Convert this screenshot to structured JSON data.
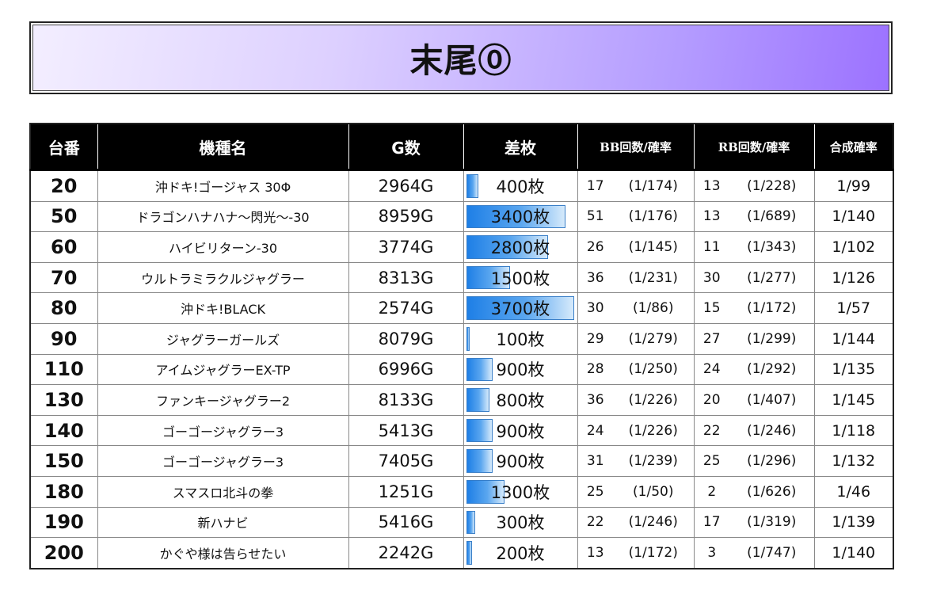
{
  "title": "末尾⓪",
  "headers": {
    "no": "台番",
    "name": "機種名",
    "games": "G数",
    "diff": "差枚",
    "bb": "BB回数/確率",
    "rb": "RB回数/確率",
    "combined": "合成確率"
  },
  "diff_scale_max": 3700,
  "rows": [
    {
      "no": "20",
      "name": "沖ドキ!ゴージャス 30Φ",
      "games": "2964G",
      "diff": "400枚",
      "diff_value": 400,
      "bb": "17",
      "bb_prob": "(1/174)",
      "rb": "13",
      "rb_prob": "(1/228)",
      "combined": "1/99"
    },
    {
      "no": "50",
      "name": "ドラゴンハナハナ～閃光～-30",
      "games": "8959G",
      "diff": "3400枚",
      "diff_value": 3400,
      "bb": "51",
      "bb_prob": "(1/176)",
      "rb": "13",
      "rb_prob": "(1/689)",
      "combined": "1/140"
    },
    {
      "no": "60",
      "name": "ハイビリターン-30",
      "games": "3774G",
      "diff": "2800枚",
      "diff_value": 2800,
      "bb": "26",
      "bb_prob": "(1/145)",
      "rb": "11",
      "rb_prob": "(1/343)",
      "combined": "1/102"
    },
    {
      "no": "70",
      "name": "ウルトラミラクルジャグラー",
      "games": "8313G",
      "diff": "1500枚",
      "diff_value": 1500,
      "bb": "36",
      "bb_prob": "(1/231)",
      "rb": "30",
      "rb_prob": "(1/277)",
      "combined": "1/126"
    },
    {
      "no": "80",
      "name": "沖ドキ!BLACK",
      "games": "2574G",
      "diff": "3700枚",
      "diff_value": 3700,
      "bb": "30",
      "bb_prob": "(1/86)",
      "rb": "15",
      "rb_prob": "(1/172)",
      "combined": "1/57"
    },
    {
      "no": "90",
      "name": "ジャグラーガールズ",
      "games": "8079G",
      "diff": "100枚",
      "diff_value": 100,
      "bb": "29",
      "bb_prob": "(1/279)",
      "rb": "27",
      "rb_prob": "(1/299)",
      "combined": "1/144"
    },
    {
      "no": "110",
      "name": "アイムジャグラーEX-TP",
      "games": "6996G",
      "diff": "900枚",
      "diff_value": 900,
      "bb": "28",
      "bb_prob": "(1/250)",
      "rb": "24",
      "rb_prob": "(1/292)",
      "combined": "1/135"
    },
    {
      "no": "130",
      "name": "ファンキージャグラー2",
      "games": "8133G",
      "diff": "800枚",
      "diff_value": 800,
      "bb": "36",
      "bb_prob": "(1/226)",
      "rb": "20",
      "rb_prob": "(1/407)",
      "combined": "1/145"
    },
    {
      "no": "140",
      "name": "ゴーゴージャグラー3",
      "games": "5413G",
      "diff": "900枚",
      "diff_value": 900,
      "bb": "24",
      "bb_prob": "(1/226)",
      "rb": "22",
      "rb_prob": "(1/246)",
      "combined": "1/118"
    },
    {
      "no": "150",
      "name": "ゴーゴージャグラー3",
      "games": "7405G",
      "diff": "900枚",
      "diff_value": 900,
      "bb": "31",
      "bb_prob": "(1/239)",
      "rb": "25",
      "rb_prob": "(1/296)",
      "combined": "1/132"
    },
    {
      "no": "180",
      "name": "スマスロ北斗の拳",
      "games": "1251G",
      "diff": "1300枚",
      "diff_value": 1300,
      "bb": "25",
      "bb_prob": "(1/50)",
      "rb": "2",
      "rb_prob": "(1/626)",
      "combined": "1/46"
    },
    {
      "no": "190",
      "name": "新ハナビ",
      "games": "5416G",
      "diff": "300枚",
      "diff_value": 300,
      "bb": "22",
      "bb_prob": "(1/246)",
      "rb": "17",
      "rb_prob": "(1/319)",
      "combined": "1/139"
    },
    {
      "no": "200",
      "name": "かぐや様は告らせたい",
      "games": "2242G",
      "diff": "200枚",
      "diff_value": 200,
      "bb": "13",
      "bb_prob": "(1/172)",
      "rb": "3",
      "rb_prob": "(1/747)",
      "combined": "1/140"
    }
  ]
}
